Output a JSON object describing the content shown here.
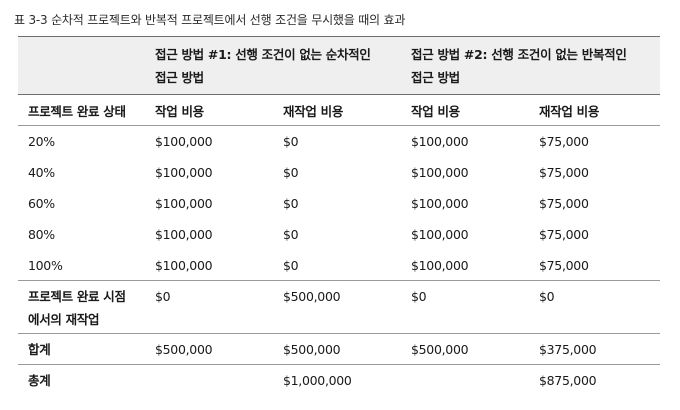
{
  "caption": "표 3-3 순차적 프로젝트와 반복적 프로젝트에서 선행 조건을 무시했을 때의 효과",
  "header": {
    "group1_line1": "접근 방법 #1: 선행 조건이 없는 순차적인",
    "group1_line2": "접근 방법",
    "group2_line1": "접근 방법 #2: 선행 조건이 없는 반복적인",
    "group2_line2": "접근 방법",
    "row_label": "프로젝트 완료 상태",
    "col_work": "작업 비용",
    "col_rework": "재작업 비용",
    "col_work2": "작업 비용",
    "col_rework2": "재작업 비용"
  },
  "rows": [
    {
      "label": "20%",
      "a_work": "$100,000",
      "a_rework": "$0",
      "b_work": "$100,000",
      "b_rework": "$75,000"
    },
    {
      "label": "40%",
      "a_work": "$100,000",
      "a_rework": "$0",
      "b_work": "$100,000",
      "b_rework": "$75,000"
    },
    {
      "label": "60%",
      "a_work": "$100,000",
      "a_rework": "$0",
      "b_work": "$100,000",
      "b_rework": "$75,000"
    },
    {
      "label": "80%",
      "a_work": "$100,000",
      "a_rework": "$0",
      "b_work": "$100,000",
      "b_rework": "$75,000"
    },
    {
      "label": "100%",
      "a_work": "$100,000",
      "a_rework": "$0",
      "b_work": "$100,000",
      "b_rework": "$75,000"
    }
  ],
  "rework_row": {
    "label_line1": "프로젝트 완료 시점",
    "label_line2": "에서의 재작업",
    "a_work": "$0",
    "a_rework": "$500,000",
    "b_work": "$0",
    "b_rework": "$0"
  },
  "subtotal_row": {
    "label": "합계",
    "a_work": "$500,000",
    "a_rework": "$500,000",
    "b_work": "$500,000",
    "b_rework": "$375,000"
  },
  "total_row": {
    "label": "총계",
    "a_work": "",
    "a_rework": "$1,000,000",
    "b_work": "",
    "b_rework": "$875,000"
  }
}
